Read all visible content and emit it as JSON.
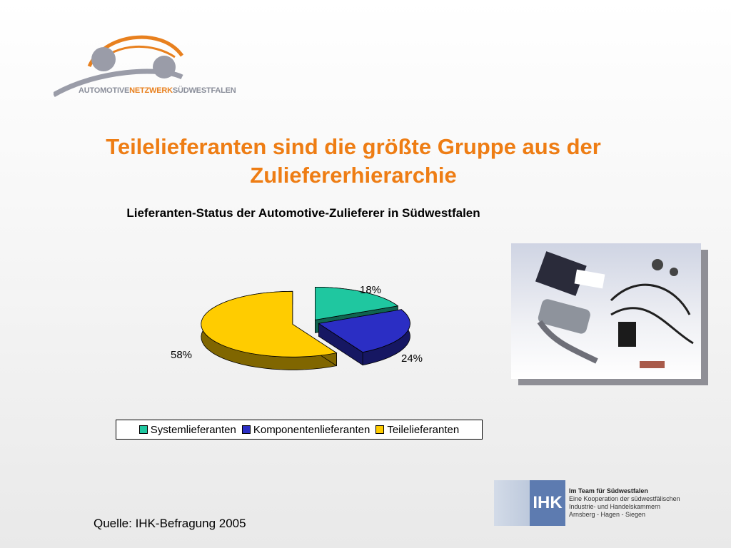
{
  "logo": {
    "text_part1": "AUTOMOTIVE",
    "text_part2": "NETZWERK",
    "text_part3": "SÜDWESTFALEN"
  },
  "slide_title": "Teilelieferanten sind die größte Gruppe aus der Zuliefererhierarchie",
  "chart_data": {
    "type": "pie",
    "title": "Lieferanten-Status der Automotive-Zulieferer in Südwestfalen",
    "categories": [
      "Systemlieferanten",
      "Komponentenlieferanten",
      "Teilelieferanten"
    ],
    "values": [
      18,
      24,
      58
    ],
    "data_labels": [
      "18%",
      "24%",
      "58%"
    ],
    "colors": [
      "#1fc7a0",
      "#2b2ec4",
      "#ffcc00"
    ],
    "legend_position": "bottom",
    "style": "3d-exploded"
  },
  "source": "Quelle: IHK-Befragung 2005",
  "ihk": {
    "mark": "IHK",
    "line1": "Im Team für Südwestfalen",
    "line2": "Eine Kooperation der südwestfälischen",
    "line3": "Industrie- und Handelskammern",
    "line4": "Arnsberg - Hagen - Siegen"
  }
}
